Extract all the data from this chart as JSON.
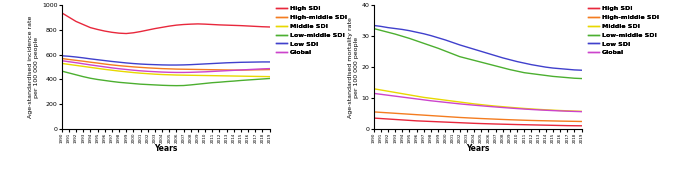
{
  "years": [
    1990,
    1991,
    1992,
    1993,
    1994,
    1995,
    1996,
    1997,
    1998,
    1999,
    2000,
    2001,
    2002,
    2003,
    2004,
    2005,
    2006,
    2007,
    2008,
    2009,
    2010,
    2011,
    2012,
    2013,
    2014,
    2015,
    2016,
    2017,
    2018,
    2019
  ],
  "incidence": {
    "High SDI": [
      940,
      905,
      870,
      845,
      820,
      805,
      792,
      782,
      775,
      772,
      778,
      788,
      800,
      812,
      822,
      832,
      840,
      845,
      848,
      850,
      848,
      845,
      842,
      840,
      838,
      836,
      833,
      830,
      827,
      825
    ],
    "High-middle SDI": [
      570,
      562,
      555,
      548,
      540,
      533,
      525,
      518,
      512,
      507,
      502,
      498,
      494,
      491,
      488,
      486,
      484,
      483,
      482,
      481,
      480,
      479,
      478,
      477,
      476,
      476,
      477,
      478,
      479,
      480
    ],
    "Middle SDI": [
      530,
      522,
      514,
      506,
      498,
      490,
      482,
      475,
      468,
      462,
      456,
      451,
      447,
      443,
      440,
      438,
      436,
      435,
      434,
      433,
      432,
      431,
      430,
      429,
      428,
      427,
      426,
      425,
      424,
      423
    ],
    "Low-middle SDI": [
      468,
      453,
      438,
      423,
      410,
      400,
      392,
      384,
      377,
      372,
      367,
      362,
      359,
      356,
      353,
      351,
      350,
      351,
      356,
      362,
      368,
      374,
      378,
      383,
      387,
      392,
      396,
      400,
      404,
      408
    ],
    "Low SDI": [
      592,
      588,
      582,
      575,
      567,
      560,
      553,
      546,
      540,
      534,
      529,
      525,
      522,
      520,
      518,
      517,
      517,
      518,
      520,
      523,
      526,
      529,
      532,
      535,
      537,
      539,
      540,
      541,
      542,
      542
    ],
    "Global": [
      552,
      544,
      536,
      527,
      518,
      510,
      502,
      494,
      487,
      481,
      475,
      470,
      466,
      463,
      460,
      458,
      457,
      457,
      458,
      460,
      462,
      465,
      468,
      471,
      474,
      477,
      480,
      483,
      486,
      488
    ]
  },
  "mortality": {
    "High SDI": [
      3.5,
      3.35,
      3.2,
      3.05,
      2.9,
      2.75,
      2.6,
      2.5,
      2.4,
      2.3,
      2.2,
      2.1,
      2.0,
      1.9,
      1.8,
      1.72,
      1.65,
      1.58,
      1.52,
      1.46,
      1.4,
      1.35,
      1.3,
      1.25,
      1.2,
      1.15,
      1.1,
      1.05,
      1.02,
      1.0
    ],
    "High-middle SDI": [
      5.5,
      5.35,
      5.2,
      5.05,
      4.9,
      4.75,
      4.6,
      4.45,
      4.3,
      4.15,
      4.0,
      3.85,
      3.7,
      3.58,
      3.46,
      3.35,
      3.25,
      3.15,
      3.05,
      2.96,
      2.88,
      2.8,
      2.73,
      2.67,
      2.62,
      2.57,
      2.52,
      2.48,
      2.44,
      2.4
    ],
    "Middle SDI": [
      13.0,
      12.6,
      12.2,
      11.8,
      11.4,
      11.0,
      10.6,
      10.2,
      9.9,
      9.6,
      9.3,
      9.0,
      8.7,
      8.4,
      8.1,
      7.85,
      7.6,
      7.38,
      7.18,
      6.98,
      6.8,
      6.62,
      6.46,
      6.32,
      6.18,
      6.06,
      5.95,
      5.85,
      5.76,
      5.68
    ],
    "Low-middle SDI": [
      32.5,
      31.9,
      31.3,
      30.7,
      30.0,
      29.3,
      28.5,
      27.7,
      26.9,
      26.1,
      25.2,
      24.3,
      23.4,
      22.8,
      22.2,
      21.6,
      21.0,
      20.4,
      19.8,
      19.2,
      18.7,
      18.2,
      17.9,
      17.6,
      17.3,
      17.0,
      16.8,
      16.6,
      16.4,
      16.3
    ],
    "Low SDI": [
      33.5,
      33.2,
      32.8,
      32.5,
      32.2,
      31.8,
      31.3,
      30.8,
      30.2,
      29.5,
      28.8,
      28.0,
      27.2,
      26.5,
      25.8,
      25.1,
      24.4,
      23.7,
      23.0,
      22.4,
      21.8,
      21.3,
      20.8,
      20.4,
      20.0,
      19.7,
      19.5,
      19.3,
      19.1,
      19.0
    ],
    "Global": [
      11.5,
      11.2,
      10.9,
      10.6,
      10.3,
      10.0,
      9.7,
      9.4,
      9.1,
      8.85,
      8.6,
      8.35,
      8.1,
      7.88,
      7.68,
      7.48,
      7.28,
      7.1,
      6.92,
      6.75,
      6.58,
      6.42,
      6.28,
      6.15,
      6.03,
      5.92,
      5.82,
      5.73,
      5.65,
      5.58
    ]
  },
  "colors": {
    "High SDI": "#e8283c",
    "High-middle SDI": "#f47c20",
    "Middle SDI": "#e8d800",
    "Low-middle SDI": "#4caf30",
    "Low SDI": "#4040cc",
    "Global": "#cc44cc"
  },
  "left_ylabel": "Age-standardised incidence rate\nper 100 000 people",
  "right_ylabel": "Age-standardised mortality rate\nper 100 000 people",
  "xlabel": "Years",
  "left_ylim": [
    0,
    1000
  ],
  "right_ylim": [
    0,
    40
  ],
  "left_yticks": [
    0,
    200,
    400,
    600,
    800,
    1000
  ],
  "right_yticks": [
    0,
    10,
    20,
    30,
    40
  ]
}
